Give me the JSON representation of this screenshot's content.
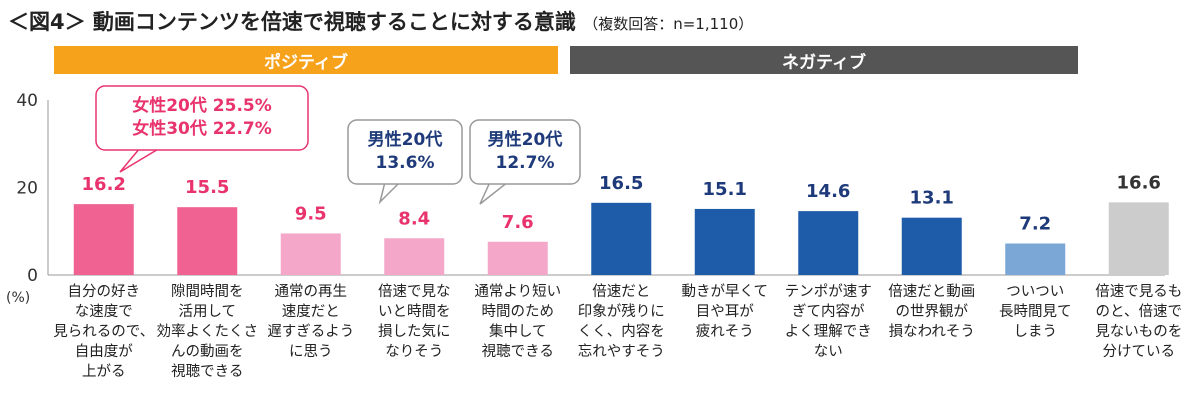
{
  "title": "＜図4＞ 動画コンテンツを倍速で視聴することに対する意識",
  "subtitle": "（複数回答：n=1,110）",
  "groups": [
    {
      "label": "ポジティブ",
      "color": "#F7A21B"
    },
    {
      "label": "ネガティブ",
      "color": "#555555"
    }
  ],
  "colors": {
    "positive_dark": "#F06292",
    "positive_light": "#F4A7C9",
    "negative_dark": "#1E5BA8",
    "negative_light": "#7BA7D7",
    "neutral": "#CCCCCC",
    "pink_text": "#E8336D",
    "navy_text": "#1F3A7A"
  },
  "callouts": [
    {
      "lines": [
        "女性20代 25.5%",
        "女性30代 22.7%"
      ],
      "style": "pink"
    },
    {
      "lines": [
        "男性20代",
        "13.6%"
      ],
      "style": "gray"
    },
    {
      "lines": [
        "男性20代",
        "12.7%"
      ],
      "style": "gray"
    }
  ],
  "chart_data": {
    "type": "bar",
    "ylabel": "(%)",
    "ylim": [
      0,
      40
    ],
    "yticks": [
      0,
      20,
      40
    ],
    "categories": [
      "自分の好きな速度で見られるので、自由度が上がる",
      "隙間時間を活用して効率よくたくさんの動画を視聴できる",
      "通常の再生速度だと遅すぎるように思う",
      "倍速で見ないと時間を損した気になりそう",
      "通常より短い時間のため集中して視聴できる",
      "倍速だと印象が残りにくく、内容を忘れやすそう",
      "動きが早くて目や耳が疲れそう",
      "テンポが速すぎて内容がよく理解できない",
      "倍速だと動画の世界観が損なわれそう",
      "ついつい長時間見てしまう",
      "倍速で見るものと、倍速で見ないものを分けている"
    ],
    "values": [
      16.2,
      15.5,
      9.5,
      8.4,
      7.6,
      16.5,
      15.1,
      14.6,
      13.1,
      7.2,
      16.6
    ],
    "value_labels": [
      "16.2",
      "15.5",
      "9.5",
      "8.4",
      "7.6",
      "16.5",
      "15.1",
      "14.6",
      "13.1",
      "7.2",
      "16.6"
    ],
    "category_lines": [
      [
        "自分の好き",
        "な速度で",
        "見られるので、",
        "自由度が",
        "上がる"
      ],
      [
        "隙間時間を",
        "活用して",
        "効率よくたくさ",
        "んの動画を",
        "視聴できる"
      ],
      [
        "通常の再生",
        "速度だと",
        "遅すぎるよう",
        "に思う"
      ],
      [
        "倍速で見な",
        "いと時間を",
        "損した気に",
        "なりそう"
      ],
      [
        "通常より短い",
        "時間のため",
        "集中して",
        "視聴できる"
      ],
      [
        "倍速だと",
        "印象が残りに",
        "くく、内容を",
        "忘れやすそう"
      ],
      [
        "動きが早くて",
        "目や耳が",
        "疲れそう"
      ],
      [
        "テンポが速す",
        "ぎて内容が",
        "よく理解でき",
        "ない"
      ],
      [
        "倍速だと動画",
        "の世界観が",
        "損なわれそう"
      ],
      [
        "ついつい",
        "長時間見て",
        "しまう"
      ],
      [
        "倍速で見るも",
        "のと、倍速で",
        "見ないものを",
        "分けている"
      ]
    ]
  }
}
